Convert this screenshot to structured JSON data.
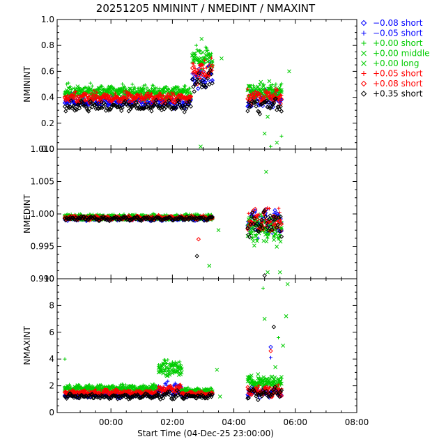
{
  "chart_data": {
    "type": "scatter",
    "title": "20251205  NMININT  /  NMEDINT  /  NMAXINT",
    "xlabel": "Start Time (04-Dec-25 23:00:00)",
    "xlim": [
      -0.75,
      9.0
    ],
    "x_ticks": [
      {
        "v": 1,
        "label": "00:00"
      },
      {
        "v": 3,
        "label": "02:00"
      },
      {
        "v": 5,
        "label": "04:00"
      },
      {
        "v": 7,
        "label": "06:00"
      },
      {
        "v": 9,
        "label": "08:00"
      }
    ],
    "legend_position": "right",
    "series": [
      {
        "name": "−0.08 short",
        "color": "#0000ff",
        "marker": "diamond"
      },
      {
        "name": "−0.05 short",
        "color": "#0000ff",
        "marker": "plus"
      },
      {
        "name": "+0.00 short",
        "color": "#00cc00",
        "marker": "plus"
      },
      {
        "name": "+0.00 middle",
        "color": "#00cc00",
        "marker": "cross"
      },
      {
        "name": "+0.00 long",
        "color": "#00cc00",
        "marker": "cross"
      },
      {
        "name": "+0.05 short",
        "color": "#ff0000",
        "marker": "plus"
      },
      {
        "name": "+0.08 short",
        "color": "#ff0000",
        "marker": "diamond"
      },
      {
        "name": "+0.35 short",
        "color": "#000000",
        "marker": "diamond"
      }
    ],
    "panels": [
      {
        "ylabel": "NMININT",
        "ylim": [
          0.0,
          1.0
        ],
        "y_ticks": [
          "0.0",
          "0.2",
          "0.4",
          "0.6",
          "0.8",
          "1.0"
        ],
        "y_tick_values": [
          0.0,
          0.2,
          0.4,
          0.6,
          0.8,
          1.0
        ],
        "segments": [
          {
            "x0": -0.5,
            "x1": 3.6,
            "levels": [
              0.36,
              0.38,
              0.46,
              0.44,
              0.42,
              0.4,
              0.39,
              0.33
            ],
            "noise": 0.04
          },
          {
            "x0": 3.65,
            "x1": 4.3,
            "levels": [
              0.55,
              0.57,
              0.72,
              0.7,
              0.68,
              0.62,
              0.6,
              0.53
            ],
            "noise": 0.08
          },
          {
            "x0": 5.45,
            "x1": 6.55,
            "levels": [
              0.38,
              0.4,
              0.45,
              0.46,
              0.44,
              0.41,
              0.4,
              0.34
            ],
            "noise": 0.06
          }
        ],
        "outliers": [
          {
            "s": 3,
            "x": 3.95,
            "y": 0.85
          },
          {
            "s": 3,
            "x": 3.92,
            "y": 0.02
          },
          {
            "s": 3,
            "x": 4.6,
            "y": 0.7
          },
          {
            "s": 3,
            "x": 6.4,
            "y": 0.05
          },
          {
            "s": 2,
            "x": 6.2,
            "y": 0.02
          },
          {
            "s": 3,
            "x": 6.0,
            "y": 0.12
          },
          {
            "s": 3,
            "x": 6.1,
            "y": 0.25
          },
          {
            "s": 2,
            "x": 6.55,
            "y": 0.1
          },
          {
            "s": 3,
            "x": 6.8,
            "y": 0.6
          }
        ]
      },
      {
        "ylabel": "NMEDINT",
        "ylim": [
          0.99,
          1.01
        ],
        "y_ticks": [
          "0.990",
          "0.995",
          "1.000",
          "1.005",
          "1.010"
        ],
        "y_tick_values": [
          0.99,
          0.995,
          1.0,
          1.005,
          1.01
        ],
        "segments": [
          {
            "x0": -0.5,
            "x1": 4.3,
            "levels": [
              0.9993,
              0.9992,
              0.9997,
              0.9995,
              0.9994,
              0.9994,
              0.9994,
              0.9993
            ],
            "noise": 0.0003
          },
          {
            "x0": 5.45,
            "x1": 6.55,
            "levels": [
              0.999,
              0.9988,
              0.9975,
              0.997,
              0.9985,
              0.9988,
              0.9988,
              0.9985
            ],
            "noise": 0.002
          }
        ],
        "outliers": [
          {
            "s": 7,
            "x": 3.8,
            "y": 0.9935
          },
          {
            "s": 6,
            "x": 3.85,
            "y": 0.9961
          },
          {
            "s": 3,
            "x": 4.2,
            "y": 0.992
          },
          {
            "s": 3,
            "x": 4.5,
            "y": 0.9975
          },
          {
            "s": 3,
            "x": 6.05,
            "y": 1.0065
          },
          {
            "s": 4,
            "x": 6.1,
            "y": 0.991
          },
          {
            "s": 7,
            "x": 6.0,
            "y": 0.9905
          },
          {
            "s": 3,
            "x": 6.5,
            "y": 0.991
          }
        ]
      },
      {
        "ylabel": "NMAXINT",
        "ylim": [
          0.0,
          10.0
        ],
        "y_ticks": [
          "0",
          "2",
          "4",
          "6",
          "8",
          "10"
        ],
        "y_tick_values": [
          0,
          2,
          4,
          6,
          8,
          10
        ],
        "segments": [
          {
            "x0": -0.5,
            "x1": 2.55,
            "levels": [
              1.3,
              1.4,
              1.9,
              1.8,
              1.7,
              1.5,
              1.5,
              1.2
            ],
            "noise": 0.2
          },
          {
            "x0": 2.55,
            "x1": 3.3,
            "levels": [
              1.6,
              2.0,
              3.6,
              3.4,
              3.0,
              1.8,
              1.7,
              1.3
            ],
            "noise": 0.3
          },
          {
            "x0": 3.3,
            "x1": 4.3,
            "levels": [
              1.3,
              1.4,
              1.7,
              1.6,
              1.5,
              1.4,
              1.4,
              1.2
            ],
            "noise": 0.15
          },
          {
            "x0": 5.45,
            "x1": 6.55,
            "levels": [
              1.5,
              1.6,
              2.3,
              2.4,
              2.1,
              1.7,
              1.6,
              1.5
            ],
            "noise": 0.4
          }
        ],
        "outliers": [
          {
            "s": 2,
            "x": -0.5,
            "y": 4.0
          },
          {
            "s": 3,
            "x": 4.45,
            "y": 3.2
          },
          {
            "s": 3,
            "x": 4.55,
            "y": 1.2
          },
          {
            "s": 2,
            "x": 5.95,
            "y": 9.3
          },
          {
            "s": 3,
            "x": 6.0,
            "y": 7.0
          },
          {
            "s": 7,
            "x": 6.3,
            "y": 6.4
          },
          {
            "s": 3,
            "x": 6.75,
            "y": 9.6
          },
          {
            "s": 3,
            "x": 6.7,
            "y": 7.2
          },
          {
            "s": 6,
            "x": 6.2,
            "y": 4.6
          },
          {
            "s": 0,
            "x": 6.2,
            "y": 4.9
          },
          {
            "s": 1,
            "x": 6.2,
            "y": 4.1
          },
          {
            "s": 2,
            "x": 6.45,
            "y": 5.6
          },
          {
            "s": 4,
            "x": 6.6,
            "y": 5.0
          },
          {
            "s": 3,
            "x": 6.35,
            "y": 3.4
          }
        ]
      }
    ]
  }
}
